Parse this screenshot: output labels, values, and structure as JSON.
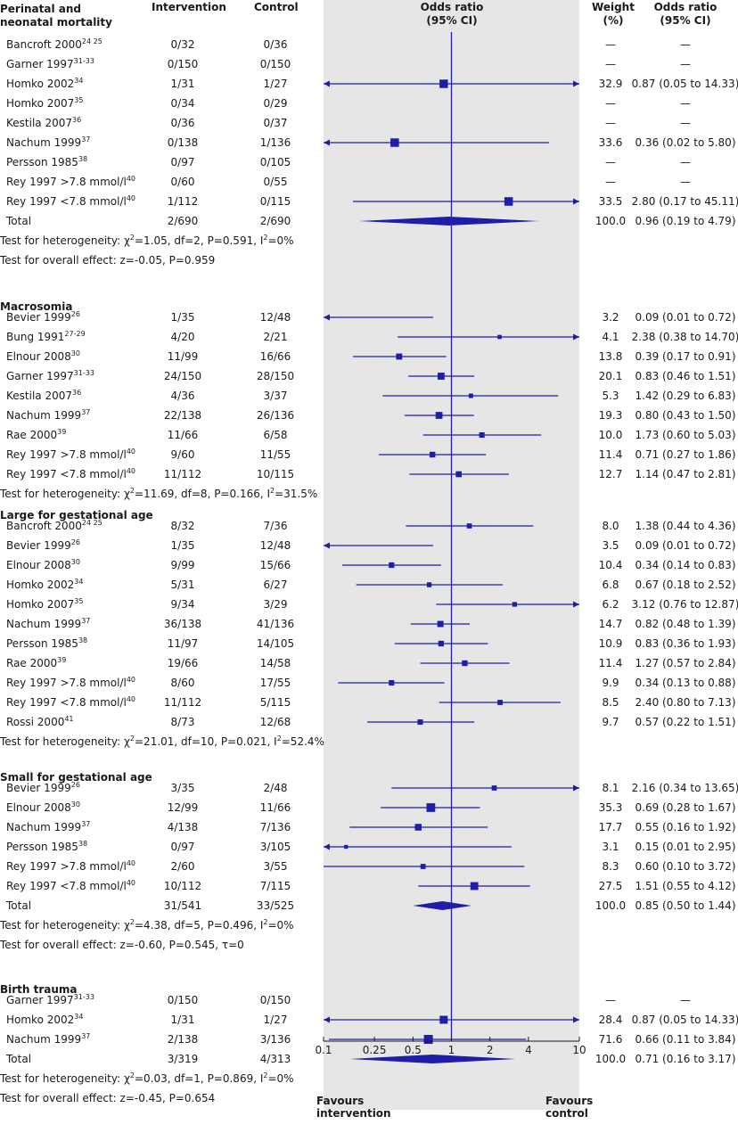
{
  "headers": {
    "intervention": "Intervention",
    "control": "Control",
    "or_line1": "Odds ratio",
    "or_line2": "(95% CI)",
    "weight_line1": "Weight",
    "weight_line2": "(%)",
    "orci_line1": "Odds ratio",
    "orci_line2": "(95% CI)"
  },
  "axis": {
    "ticks": [
      "0.1",
      "0.25",
      "0.5",
      "1",
      "2",
      "4",
      "10"
    ],
    "favours_left": [
      "Favours",
      "intervention"
    ],
    "favours_right": [
      "Favours",
      "control"
    ]
  },
  "colors": {
    "marker": "#1e1ea8",
    "panel": "#e6e6e6"
  },
  "chart_data": {
    "type": "forest",
    "scale": "log",
    "xlim": [
      0.1,
      10
    ],
    "groups": [
      {
        "title_lines": [
          "Perinatal and",
          "neonatal mortality"
        ],
        "rows": [
          {
            "study": "Bancroft 2000",
            "ref": "24 25",
            "int": "0/32",
            "ctrl": "0/36",
            "weight": "—",
            "or_text": "—"
          },
          {
            "study": "Garner 1997",
            "ref": "31-33",
            "int": "0/150",
            "ctrl": "0/150",
            "weight": "—",
            "or_text": "—"
          },
          {
            "study": "Homko 2002",
            "ref": "34",
            "int": "1/31",
            "ctrl": "1/27",
            "weight": "32.9",
            "or_text": "0.87 (0.05 to 14.33)",
            "or": 0.87,
            "lo": 0.05,
            "hi": 14.33
          },
          {
            "study": "Homko 2007",
            "ref": "35",
            "int": "0/34",
            "ctrl": "0/29",
            "weight": "—",
            "or_text": "—"
          },
          {
            "study": "Kestila 2007",
            "ref": "36",
            "int": "0/36",
            "ctrl": "0/37",
            "weight": "—",
            "or_text": "—"
          },
          {
            "study": "Nachum 1999",
            "ref": "37",
            "int": "0/138",
            "ctrl": "1/136",
            "weight": "33.6",
            "or_text": "0.36 (0.02 to 5.80)",
            "or": 0.36,
            "lo": 0.02,
            "hi": 5.8
          },
          {
            "study": "Persson 1985",
            "ref": "38",
            "int": "0/97",
            "ctrl": "0/105",
            "weight": "—",
            "or_text": "—"
          },
          {
            "study": "Rey 1997 >7.8 mmol/l",
            "ref": "40",
            "int": "0/60",
            "ctrl": "0/55",
            "weight": "—",
            "or_text": "—"
          },
          {
            "study": "Rey 1997 <7.8 mmol/l",
            "ref": "40",
            "int": "1/112",
            "ctrl": "0/115",
            "weight": "33.5",
            "or_text": "2.80 (0.17 to 45.11)",
            "or": 2.8,
            "lo": 0.17,
            "hi": 45.11
          }
        ],
        "total": {
          "label": "Total",
          "int": "2/690",
          "ctrl": "2/690",
          "weight": "100.0",
          "or_text": "0.96 (0.19 to 4.79)",
          "or": 0.96,
          "lo": 0.19,
          "hi": 4.79
        },
        "stats": [
          {
            "pre": "Test for heterogeneity: χ",
            "sup": "2",
            "post": "=1.05, df=2, P=0.591, I",
            "sup2": "2",
            "post2": "=0%"
          },
          {
            "pre": "Test for overall effect: z=-0.05, P=0.959"
          }
        ]
      },
      {
        "title_lines": [
          "Macrosomia"
        ],
        "rows": [
          {
            "study": "Bevier 1999",
            "ref": "26",
            "int": "1/35",
            "ctrl": "12/48",
            "weight": "3.2",
            "or_text": "0.09 (0.01 to 0.72)",
            "or": 0.09,
            "lo": 0.01,
            "hi": 0.72
          },
          {
            "study": "Bung 1991",
            "ref": "27-29",
            "int": "4/20",
            "ctrl": "2/21",
            "weight": "4.1",
            "or_text": "2.38 (0.38 to 14.70)",
            "or": 2.38,
            "lo": 0.38,
            "hi": 14.7
          },
          {
            "study": "Elnour 2008",
            "ref": "30",
            "int": "11/99",
            "ctrl": "16/66",
            "weight": "13.8",
            "or_text": "0.39 (0.17 to 0.91)",
            "or": 0.39,
            "lo": 0.17,
            "hi": 0.91
          },
          {
            "study": "Garner 1997",
            "ref": "31-33",
            "int": "24/150",
            "ctrl": "28/150",
            "weight": "20.1",
            "or_text": "0.83 (0.46 to 1.51)",
            "or": 0.83,
            "lo": 0.46,
            "hi": 1.51
          },
          {
            "study": "Kestila 2007",
            "ref": "36",
            "int": "4/36",
            "ctrl": "3/37",
            "weight": "5.3",
            "or_text": "1.42 (0.29 to 6.83)",
            "or": 1.42,
            "lo": 0.29,
            "hi": 6.83
          },
          {
            "study": "Nachum 1999",
            "ref": "37",
            "int": "22/138",
            "ctrl": "26/136",
            "weight": "19.3",
            "or_text": "0.80 (0.43 to 1.50)",
            "or": 0.8,
            "lo": 0.43,
            "hi": 1.5
          },
          {
            "study": "Rae 2000",
            "ref": "39",
            "int": "11/66",
            "ctrl": "6/58",
            "weight": "10.0",
            "or_text": "1.73 (0.60 to 5.03)",
            "or": 1.73,
            "lo": 0.6,
            "hi": 5.03
          },
          {
            "study": "Rey 1997 >7.8 mmol/l",
            "ref": "40",
            "int": "9/60",
            "ctrl": "11/55",
            "weight": "11.4",
            "or_text": "0.71 (0.27 to 1.86)",
            "or": 0.71,
            "lo": 0.27,
            "hi": 1.86
          },
          {
            "study": "Rey 1997 <7.8 mmol/l",
            "ref": "40",
            "int": "11/112",
            "ctrl": "10/115",
            "weight": "12.7",
            "or_text": "1.14 (0.47 to 2.81)",
            "or": 1.14,
            "lo": 0.47,
            "hi": 2.81
          }
        ],
        "stats": [
          {
            "pre": "Test for heterogeneity: χ",
            "sup": "2",
            "post": "=11.69, df=8, P=0.166, I",
            "sup2": "2",
            "post2": "=31.5%"
          }
        ]
      },
      {
        "title_lines": [
          "Large for gestational age"
        ],
        "rows": [
          {
            "study": "Bancroft 2000",
            "ref": "24 25",
            "int": "8/32",
            "ctrl": "7/36",
            "weight": "8.0",
            "or_text": "1.38 (0.44 to 4.36)",
            "or": 1.38,
            "lo": 0.44,
            "hi": 4.36
          },
          {
            "study": "Bevier 1999",
            "ref": "26",
            "int": "1/35",
            "ctrl": "12/48",
            "weight": "3.5",
            "or_text": "0.09 (0.01 to 0.72)",
            "or": 0.09,
            "lo": 0.01,
            "hi": 0.72
          },
          {
            "study": "Elnour 2008",
            "ref": "30",
            "int": "9/99",
            "ctrl": "15/66",
            "weight": "10.4",
            "or_text": "0.34 (0.14 to 0.83)",
            "or": 0.34,
            "lo": 0.14,
            "hi": 0.83
          },
          {
            "study": "Homko 2002",
            "ref": "34",
            "int": "5/31",
            "ctrl": "6/27",
            "weight": "6.8",
            "or_text": "0.67 (0.18 to 2.52)",
            "or": 0.67,
            "lo": 0.18,
            "hi": 2.52
          },
          {
            "study": "Homko 2007",
            "ref": "35",
            "int": "9/34",
            "ctrl": "3/29",
            "weight": "6.2",
            "or_text": "3.12 (0.76 to 12.87)",
            "or": 3.12,
            "lo": 0.76,
            "hi": 12.87
          },
          {
            "study": "Nachum 1999",
            "ref": "37",
            "int": "36/138",
            "ctrl": "41/136",
            "weight": "14.7",
            "or_text": "0.82 (0.48 to 1.39)",
            "or": 0.82,
            "lo": 0.48,
            "hi": 1.39
          },
          {
            "study": "Persson 1985",
            "ref": "38",
            "int": "11/97",
            "ctrl": "14/105",
            "weight": "10.9",
            "or_text": "0.83 (0.36 to 1.93)",
            "or": 0.83,
            "lo": 0.36,
            "hi": 1.93
          },
          {
            "study": "Rae 2000",
            "ref": "39",
            "int": "19/66",
            "ctrl": "14/58",
            "weight": "11.4",
            "or_text": "1.27 (0.57 to 2.84)",
            "or": 1.27,
            "lo": 0.57,
            "hi": 2.84
          },
          {
            "study": "Rey 1997 >7.8 mmol/l",
            "ref": "40",
            "int": "8/60",
            "ctrl": "17/55",
            "weight": "9.9",
            "or_text": "0.34 (0.13 to 0.88)",
            "or": 0.34,
            "lo": 0.13,
            "hi": 0.88
          },
          {
            "study": "Rey 1997 <7.8 mmol/l",
            "ref": "40",
            "int": "11/112",
            "ctrl": "5/115",
            "weight": "8.5",
            "or_text": "2.40 (0.80 to 7.13)",
            "or": 2.4,
            "lo": 0.8,
            "hi": 7.13
          },
          {
            "study": "Rossi 2000",
            "ref": "41",
            "int": "8/73",
            "ctrl": "12/68",
            "weight": "9.7",
            "or_text": "0.57 (0.22 to 1.51)",
            "or": 0.57,
            "lo": 0.22,
            "hi": 1.51
          }
        ],
        "stats": [
          {
            "pre": "Test for heterogeneity: χ",
            "sup": "2",
            "post": "=21.01, df=10, P=0.021, I",
            "sup2": "2",
            "post2": "=52.4%"
          }
        ]
      },
      {
        "title_lines": [
          "Small for gestational age"
        ],
        "rows": [
          {
            "study": "Bevier 1999",
            "ref": "26",
            "int": "3/35",
            "ctrl": "2/48",
            "weight": "8.1",
            "or_text": "2.16 (0.34 to 13.65)",
            "or": 2.16,
            "lo": 0.34,
            "hi": 13.65
          },
          {
            "study": "Elnour 2008",
            "ref": "30",
            "int": "12/99",
            "ctrl": "11/66",
            "weight": "35.3",
            "or_text": "0.69 (0.28 to 1.67)",
            "or": 0.69,
            "lo": 0.28,
            "hi": 1.67
          },
          {
            "study": "Nachum 1999",
            "ref": "37",
            "int": "4/138",
            "ctrl": "7/136",
            "weight": "17.7",
            "or_text": "0.55 (0.16 to 1.92)",
            "or": 0.55,
            "lo": 0.16,
            "hi": 1.92
          },
          {
            "study": "Persson 1985",
            "ref": "38",
            "int": "0/97",
            "ctrl": "3/105",
            "weight": "3.1",
            "or_text": "0.15 (0.01 to 2.95)",
            "or": 0.15,
            "lo": 0.01,
            "hi": 2.95
          },
          {
            "study": "Rey 1997 >7.8 mmol/l",
            "ref": "40",
            "int": "2/60",
            "ctrl": "3/55",
            "weight": "8.3",
            "or_text": "0.60 (0.10 to 3.72)",
            "or": 0.6,
            "lo": 0.1,
            "hi": 3.72
          },
          {
            "study": "Rey 1997 <7.8 mmol/l",
            "ref": "40",
            "int": "10/112",
            "ctrl": "7/115",
            "weight": "27.5",
            "or_text": "1.51 (0.55 to 4.12)",
            "or": 1.51,
            "lo": 0.55,
            "hi": 4.12
          }
        ],
        "total": {
          "label": "Total",
          "int": "31/541",
          "ctrl": "33/525",
          "weight": "100.0",
          "or_text": "0.85 (0.50 to 1.44)",
          "or": 0.85,
          "lo": 0.5,
          "hi": 1.44
        },
        "stats": [
          {
            "pre": "Test for heterogeneity: χ",
            "sup": "2",
            "post": "=4.38, df=5, P=0.496, I",
            "sup2": "2",
            "post2": "=0%"
          },
          {
            "pre": "Test for overall effect: z=-0.60, P=0.545, τ=0"
          }
        ]
      },
      {
        "title_lines": [
          "Birth trauma"
        ],
        "rows": [
          {
            "study": "Garner 1997",
            "ref": "31-33",
            "int": "0/150",
            "ctrl": "0/150",
            "weight": "—",
            "or_text": "—"
          },
          {
            "study": "Homko 2002",
            "ref": "34",
            "int": "1/31",
            "ctrl": "1/27",
            "weight": "28.4",
            "or_text": "0.87 (0.05 to 14.33)",
            "or": 0.87,
            "lo": 0.05,
            "hi": 14.33
          },
          {
            "study": "Nachum 1999",
            "ref": "37",
            "int": "2/138",
            "ctrl": "3/136",
            "weight": "71.6",
            "or_text": "0.66 (0.11 to 3.84)",
            "or": 0.66,
            "lo": 0.11,
            "hi": 3.84
          }
        ],
        "total": {
          "label": "Total",
          "int": "3/319",
          "ctrl": "4/313",
          "weight": "100.0",
          "or_text": "0.71 (0.16 to 3.17)",
          "or": 0.71,
          "lo": 0.16,
          "hi": 3.17
        },
        "stats": [
          {
            "pre": "Test for heterogeneity: χ",
            "sup": "2",
            "post": "=0.03, df=1, P=0.869, I",
            "sup2": "2",
            "post2": "=0%"
          },
          {
            "pre": "Test for overall effect: z=-0.45, P=0.654"
          }
        ]
      }
    ]
  }
}
